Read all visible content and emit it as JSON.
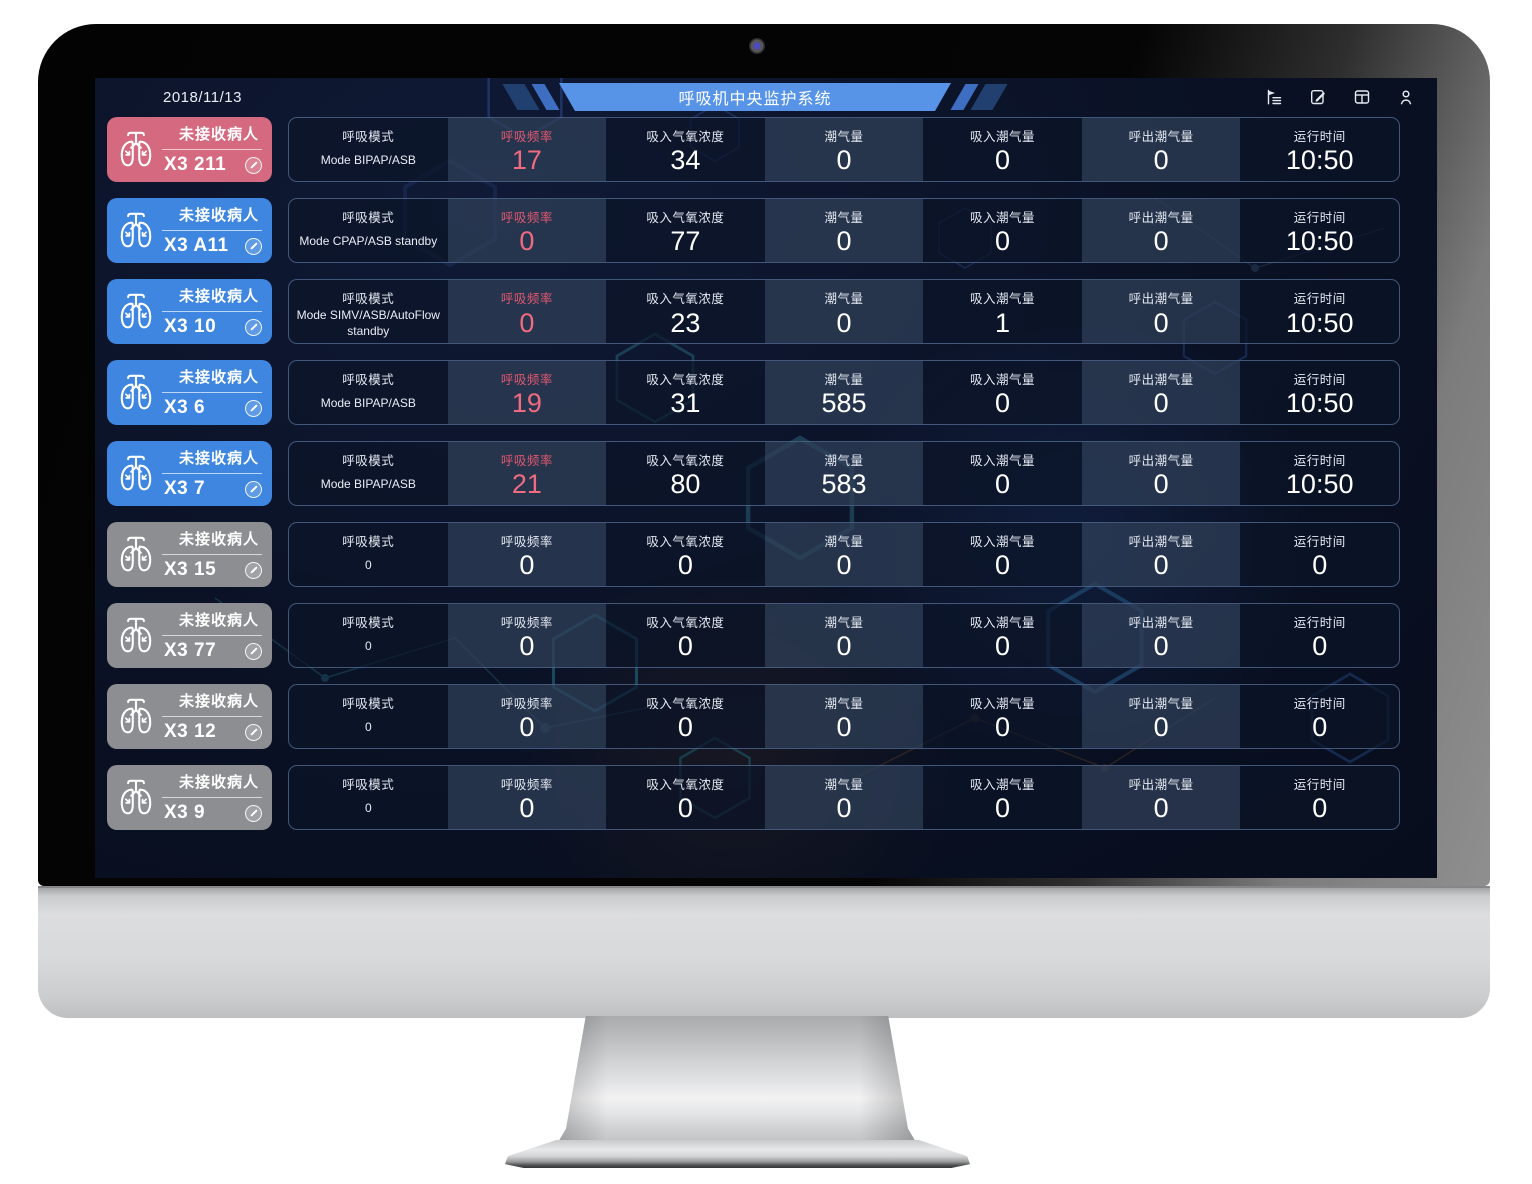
{
  "colors": {
    "accent_pink": "#ef6b80",
    "label_pink": "#e05870",
    "card_alarm": "#d4697f",
    "card_online": "#3e86e0",
    "card_offline": "#8d8e92",
    "banner_blue": "#5794e8",
    "banner_mid_blue": "#3d6ec2",
    "banner_dark_blue": "#22406f",
    "screen_navy": "#0a1124"
  },
  "header": {
    "date": "2018/11/13",
    "title": "呼吸机中央监护系统",
    "icons": [
      "flag-list-icon",
      "edit-note-icon",
      "layout-icon",
      "user-icon"
    ]
  },
  "columns": [
    "呼吸模式",
    "呼吸频率",
    "吸入气氧浓度",
    "潮气量",
    "吸入潮气量",
    "呼出潮气量",
    "运行时间"
  ],
  "status_label": "未接收病人",
  "patients": [
    {
      "id": "X3 211",
      "status": "alarm",
      "values": [
        "Mode BIPAP/ASB",
        "17",
        "34",
        "0",
        "0",
        "0",
        "10:50"
      ]
    },
    {
      "id": "X3 A11",
      "status": "online",
      "values": [
        "Mode CPAP/ASB standby",
        "0",
        "77",
        "0",
        "0",
        "0",
        "10:50"
      ]
    },
    {
      "id": "X3 10",
      "status": "online",
      "values": [
        "Mode SIMV/ASB/AutoFlow standby",
        "0",
        "23",
        "0",
        "1",
        "0",
        "10:50"
      ]
    },
    {
      "id": "X3 6",
      "status": "online",
      "values": [
        "Mode BIPAP/ASB",
        "19",
        "31",
        "585",
        "0",
        "0",
        "10:50"
      ]
    },
    {
      "id": "X3 7",
      "status": "online",
      "values": [
        "Mode BIPAP/ASB",
        "21",
        "80",
        "583",
        "0",
        "0",
        "10:50"
      ]
    },
    {
      "id": "X3 15",
      "status": "offline",
      "values": [
        "0",
        "0",
        "0",
        "0",
        "0",
        "0",
        "0"
      ]
    },
    {
      "id": "X3 77",
      "status": "offline",
      "values": [
        "0",
        "0",
        "0",
        "0",
        "0",
        "0",
        "0"
      ]
    },
    {
      "id": "X3 12",
      "status": "offline",
      "values": [
        "0",
        "0",
        "0",
        "0",
        "0",
        "0",
        "0"
      ]
    },
    {
      "id": "X3 9",
      "status": "offline",
      "values": [
        "0",
        "0",
        "0",
        "0",
        "0",
        "0",
        "0"
      ]
    }
  ]
}
